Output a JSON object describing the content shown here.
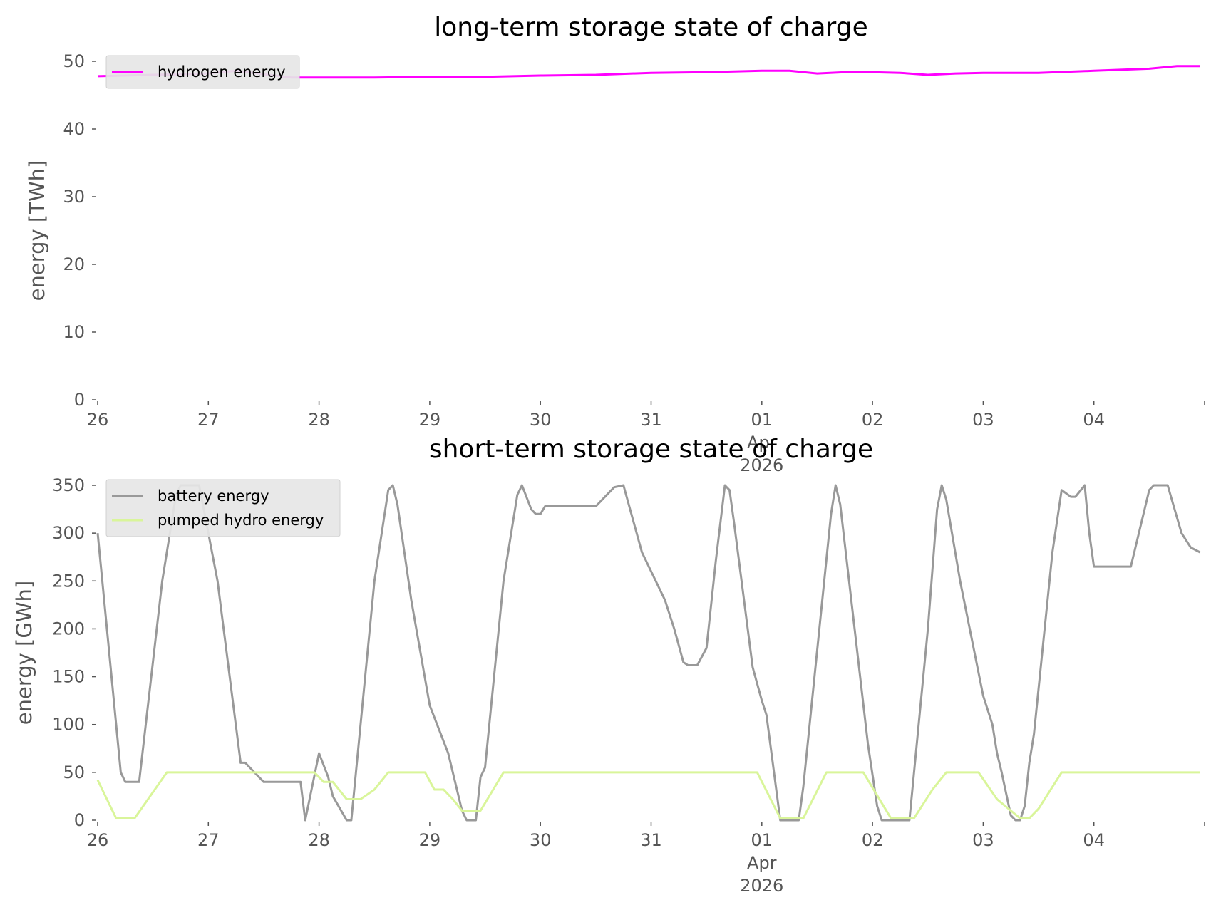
{
  "chart_data": [
    {
      "type": "line",
      "title": "long-term storage state of charge",
      "ylabel": "energy [TWh]",
      "xlabel": "",
      "ylim": [
        0,
        50
      ],
      "yticks": [
        0,
        10,
        20,
        30,
        40,
        50
      ],
      "xlim": [
        "2026-03-26 00:00",
        "2026-04-04 23:00"
      ],
      "xticks": [
        "26",
        "27",
        "28",
        "29",
        "30",
        "31",
        "01",
        "02",
        "03",
        "04"
      ],
      "xtick_sub": [
        "Apr",
        "2026"
      ],
      "grid": false,
      "legend": "top-left",
      "series": [
        {
          "name": "hydrogen energy",
          "color": "#ff00ff",
          "points": [
            [
              "2026-03-26 00:00",
              47.8
            ],
            [
              "2026-03-26 12:00",
              48.0
            ],
            [
              "2026-03-27 00:00",
              48.2
            ],
            [
              "2026-03-27 06:00",
              48.6
            ],
            [
              "2026-03-27 18:00",
              47.6
            ],
            [
              "2026-03-28 00:00",
              47.6
            ],
            [
              "2026-03-28 12:00",
              47.6
            ],
            [
              "2026-03-29 00:00",
              47.7
            ],
            [
              "2026-03-29 12:00",
              47.7
            ],
            [
              "2026-03-30 00:00",
              47.9
            ],
            [
              "2026-03-30 12:00",
              48.0
            ],
            [
              "2026-03-31 00:00",
              48.3
            ],
            [
              "2026-03-31 12:00",
              48.4
            ],
            [
              "2026-04-01 00:00",
              48.6
            ],
            [
              "2026-04-01 06:00",
              48.6
            ],
            [
              "2026-04-01 12:00",
              48.2
            ],
            [
              "2026-04-01 18:00",
              48.4
            ],
            [
              "2026-04-02 00:00",
              48.4
            ],
            [
              "2026-04-02 06:00",
              48.3
            ],
            [
              "2026-04-02 12:00",
              48.0
            ],
            [
              "2026-04-02 18:00",
              48.2
            ],
            [
              "2026-04-03 00:00",
              48.3
            ],
            [
              "2026-04-03 12:00",
              48.3
            ],
            [
              "2026-04-04 00:00",
              48.6
            ],
            [
              "2026-04-04 12:00",
              48.9
            ],
            [
              "2026-04-04 18:00",
              49.3
            ],
            [
              "2026-04-04 23:00",
              49.3
            ]
          ]
        }
      ]
    },
    {
      "type": "line",
      "title": "short-term storage state of charge",
      "ylabel": "energy [GWh]",
      "xlabel": "",
      "ylim": [
        0,
        350
      ],
      "yticks": [
        0,
        50,
        100,
        150,
        200,
        250,
        300,
        350
      ],
      "xlim": [
        "2026-03-26 00:00",
        "2026-04-04 23:00"
      ],
      "xticks": [
        "26",
        "27",
        "28",
        "29",
        "30",
        "31",
        "01",
        "02",
        "03",
        "04"
      ],
      "xtick_sub": [
        "Apr",
        "2026"
      ],
      "grid": false,
      "legend": "top-left",
      "series": [
        {
          "name": "battery energy",
          "color": "#999999",
          "points": [
            [
              "2026-03-26 00:00",
              300
            ],
            [
              "2026-03-26 01:00",
              250
            ],
            [
              "2026-03-26 05:00",
              50
            ],
            [
              "2026-03-26 06:00",
              40
            ],
            [
              "2026-03-26 09:00",
              40
            ],
            [
              "2026-03-26 14:00",
              250
            ],
            [
              "2026-03-26 17:00",
              340
            ],
            [
              "2026-03-26 18:00",
              350
            ],
            [
              "2026-03-26 22:00",
              350
            ],
            [
              "2026-03-27 02:00",
              250
            ],
            [
              "2026-03-27 07:00",
              60
            ],
            [
              "2026-03-27 08:00",
              60
            ],
            [
              "2026-03-27 10:00",
              50
            ],
            [
              "2026-03-27 12:00",
              40
            ],
            [
              "2026-03-27 20:00",
              40
            ],
            [
              "2026-03-27 21:00",
              0
            ],
            [
              "2026-03-28 00:00",
              70
            ],
            [
              "2026-03-28 02:00",
              45
            ],
            [
              "2026-03-28 03:00",
              25
            ],
            [
              "2026-03-28 06:00",
              0
            ],
            [
              "2026-03-28 07:00",
              0
            ],
            [
              "2026-03-28 12:00",
              250
            ],
            [
              "2026-03-28 15:00",
              345
            ],
            [
              "2026-03-28 16:00",
              350
            ],
            [
              "2026-03-28 17:00",
              330
            ],
            [
              "2026-03-28 20:00",
              230
            ],
            [
              "2026-03-29 00:00",
              120
            ],
            [
              "2026-03-29 04:00",
              70
            ],
            [
              "2026-03-29 06:00",
              30
            ],
            [
              "2026-03-29 07:00",
              10
            ],
            [
              "2026-03-29 08:00",
              0
            ],
            [
              "2026-03-29 10:00",
              0
            ],
            [
              "2026-03-29 11:00",
              45
            ],
            [
              "2026-03-29 12:00",
              55
            ],
            [
              "2026-03-29 16:00",
              250
            ],
            [
              "2026-03-29 19:00",
              340
            ],
            [
              "2026-03-29 20:00",
              350
            ],
            [
              "2026-03-29 22:00",
              325
            ],
            [
              "2026-03-29 23:00",
              320
            ],
            [
              "2026-03-30 00:00",
              320
            ],
            [
              "2026-03-30 01:00",
              328
            ],
            [
              "2026-03-30 12:00",
              328
            ],
            [
              "2026-03-30 14:00",
              338
            ],
            [
              "2026-03-30 16:00",
              348
            ],
            [
              "2026-03-30 18:00",
              350
            ],
            [
              "2026-03-30 22:00",
              280
            ],
            [
              "2026-03-31 03:00",
              230
            ],
            [
              "2026-03-31 05:00",
              200
            ],
            [
              "2026-03-31 07:00",
              165
            ],
            [
              "2026-03-31 08:00",
              162
            ],
            [
              "2026-03-31 10:00",
              162
            ],
            [
              "2026-03-31 12:00",
              180
            ],
            [
              "2026-03-31 14:00",
              270
            ],
            [
              "2026-03-31 16:00",
              350
            ],
            [
              "2026-03-31 17:00",
              345
            ],
            [
              "2026-03-31 18:00",
              310
            ],
            [
              "2026-03-31 22:00",
              160
            ],
            [
              "2026-04-01 00:00",
              125
            ],
            [
              "2026-04-01 01:00",
              110
            ],
            [
              "2026-04-01 04:00",
              0
            ],
            [
              "2026-04-01 08:00",
              0
            ],
            [
              "2026-04-01 09:00",
              35
            ],
            [
              "2026-04-01 15:00",
              320
            ],
            [
              "2026-04-01 16:00",
              350
            ],
            [
              "2026-04-01 17:00",
              330
            ],
            [
              "2026-04-01 23:00",
              80
            ],
            [
              "2026-04-02 01:00",
              15
            ],
            [
              "2026-04-02 02:00",
              0
            ],
            [
              "2026-04-02 08:00",
              0
            ],
            [
              "2026-04-02 12:00",
              200
            ],
            [
              "2026-04-02 14:00",
              325
            ],
            [
              "2026-04-02 15:00",
              350
            ],
            [
              "2026-04-02 16:00",
              335
            ],
            [
              "2026-04-02 19:00",
              250
            ],
            [
              "2026-04-03 00:00",
              130
            ],
            [
              "2026-04-03 02:00",
              100
            ],
            [
              "2026-04-03 03:00",
              70
            ],
            [
              "2026-04-03 04:00",
              50
            ],
            [
              "2026-04-03 06:00",
              5
            ],
            [
              "2026-04-03 07:00",
              0
            ],
            [
              "2026-04-03 08:00",
              0
            ],
            [
              "2026-04-03 09:00",
              15
            ],
            [
              "2026-04-03 10:00",
              60
            ],
            [
              "2026-04-03 11:00",
              90
            ],
            [
              "2026-04-03 15:00",
              280
            ],
            [
              "2026-04-03 17:00",
              345
            ],
            [
              "2026-04-03 19:00",
              338
            ],
            [
              "2026-04-03 20:00",
              338
            ],
            [
              "2026-04-03 22:00",
              350
            ],
            [
              "2026-04-03 23:00",
              300
            ],
            [
              "2026-04-04 00:00",
              265
            ],
            [
              "2026-04-04 08:00",
              265
            ],
            [
              "2026-04-04 12:00",
              345
            ],
            [
              "2026-04-04 13:00",
              350
            ],
            [
              "2026-04-04 16:00",
              350
            ],
            [
              "2026-04-04 19:00",
              300
            ],
            [
              "2026-04-04 21:00",
              285
            ],
            [
              "2026-04-04 23:00",
              280
            ]
          ]
        },
        {
          "name": "pumped hydro energy",
          "color": "#d9f59a",
          "points": [
            [
              "2026-03-26 00:00",
              42
            ],
            [
              "2026-03-26 04:00",
              2
            ],
            [
              "2026-03-26 08:00",
              2
            ],
            [
              "2026-03-26 15:00",
              50
            ],
            [
              "2026-03-27 23:00",
              50
            ],
            [
              "2026-03-28 01:00",
              40
            ],
            [
              "2026-03-28 03:00",
              40
            ],
            [
              "2026-03-28 06:00",
              22
            ],
            [
              "2026-03-28 09:00",
              22
            ],
            [
              "2026-03-28 12:00",
              32
            ],
            [
              "2026-03-28 15:00",
              50
            ],
            [
              "2026-03-28 23:00",
              50
            ],
            [
              "2026-03-29 01:00",
              32
            ],
            [
              "2026-03-29 03:00",
              32
            ],
            [
              "2026-03-29 05:00",
              22
            ],
            [
              "2026-03-29 07:00",
              10
            ],
            [
              "2026-03-29 11:00",
              10
            ],
            [
              "2026-03-29 16:00",
              50
            ],
            [
              "2026-03-31 23:00",
              50
            ],
            [
              "2026-04-01 04:00",
              2
            ],
            [
              "2026-04-01 09:00",
              2
            ],
            [
              "2026-04-01 14:00",
              50
            ],
            [
              "2026-04-01 22:00",
              50
            ],
            [
              "2026-04-02 04:00",
              2
            ],
            [
              "2026-04-02 09:00",
              2
            ],
            [
              "2026-04-02 13:00",
              32
            ],
            [
              "2026-04-02 16:00",
              50
            ],
            [
              "2026-04-02 23:00",
              50
            ],
            [
              "2026-04-03 03:00",
              22
            ],
            [
              "2026-04-03 06:00",
              10
            ],
            [
              "2026-04-03 08:00",
              2
            ],
            [
              "2026-04-03 10:00",
              2
            ],
            [
              "2026-04-03 12:00",
              12
            ],
            [
              "2026-04-03 17:00",
              50
            ],
            [
              "2026-04-04 23:00",
              50
            ]
          ]
        }
      ]
    }
  ]
}
